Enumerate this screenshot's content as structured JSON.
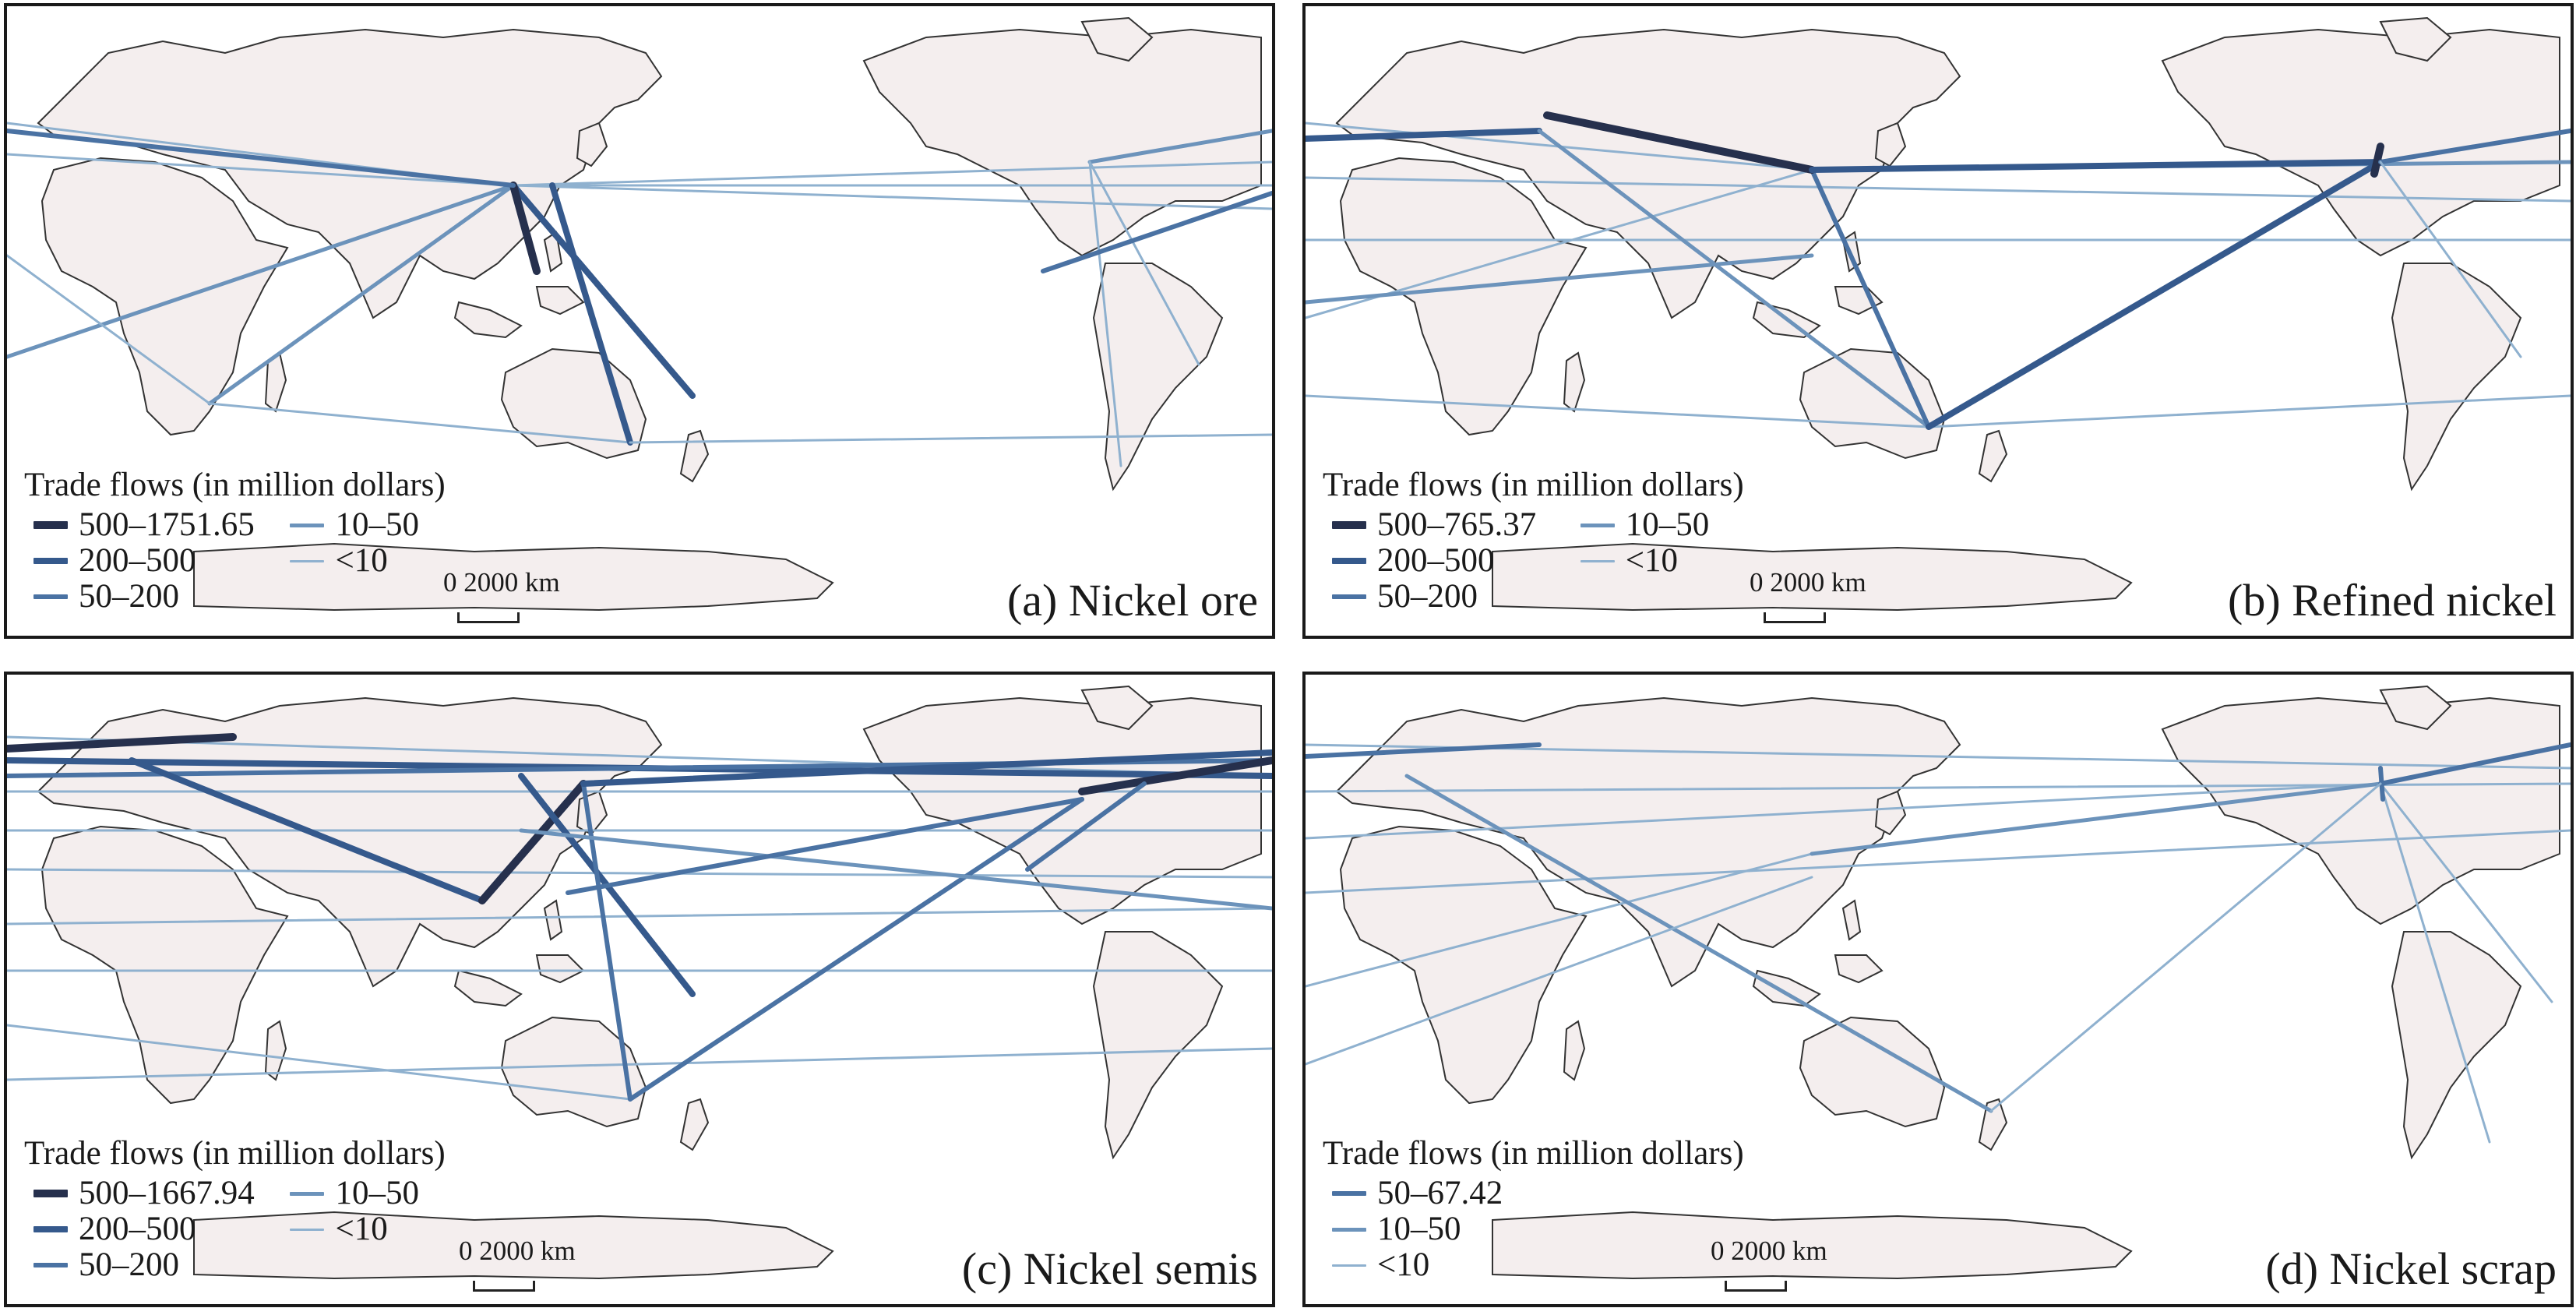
{
  "colors": {
    "land": "#f4eeee",
    "coast": "#333333",
    "ocean": "#ffffff",
    "flow_very_high": "#26304d",
    "flow_high": "#35598c",
    "flow_mid": "#4a72a3",
    "flow_low": "#6c93bb",
    "flow_very_low": "#8fb1cf"
  },
  "shared": {
    "legend_title": "Trade flows (in million dollars)",
    "scale_label": "0  2000 km"
  },
  "panels": [
    {
      "id": "a",
      "label": "(a) Nickel ore",
      "legend": [
        {
          "text": "500–1751.65",
          "color": "#26304d",
          "width": 10
        },
        {
          "text": "10–50",
          "color": "#6c93bb",
          "width": 5
        },
        {
          "text": "200–500",
          "color": "#35598c",
          "width": 8
        },
        {
          "text": "<10",
          "color": "#8fb1cf",
          "width": 3
        },
        {
          "text": "50–200",
          "color": "#4a72a3",
          "width": 6
        }
      ]
    },
    {
      "id": "b",
      "label": "(b) Refined nickel",
      "legend": [
        {
          "text": "500–765.37",
          "color": "#26304d",
          "width": 10
        },
        {
          "text": "10–50",
          "color": "#6c93bb",
          "width": 5
        },
        {
          "text": "200–500",
          "color": "#35598c",
          "width": 8
        },
        {
          "text": "<10",
          "color": "#8fb1cf",
          "width": 3
        },
        {
          "text": "50–200",
          "color": "#4a72a3",
          "width": 6
        }
      ]
    },
    {
      "id": "c",
      "label": "(c) Nickel semis",
      "legend": [
        {
          "text": "500–1667.94",
          "color": "#26304d",
          "width": 10
        },
        {
          "text": "10–50",
          "color": "#6c93bb",
          "width": 5
        },
        {
          "text": "200–500",
          "color": "#35598c",
          "width": 8
        },
        {
          "text": "<10",
          "color": "#8fb1cf",
          "width": 3
        },
        {
          "text": "50–200",
          "color": "#4a72a3",
          "width": 6
        }
      ]
    },
    {
      "id": "d",
      "label": "(d) Nickel scrap",
      "legend": [
        {
          "text": "50–67.42",
          "color": "#4a72a3",
          "width": 6
        },
        {
          "text": "10–50",
          "color": "#6c93bb",
          "width": 5
        },
        {
          "text": "<10",
          "color": "#8fb1cf",
          "width": 3
        }
      ]
    }
  ]
}
